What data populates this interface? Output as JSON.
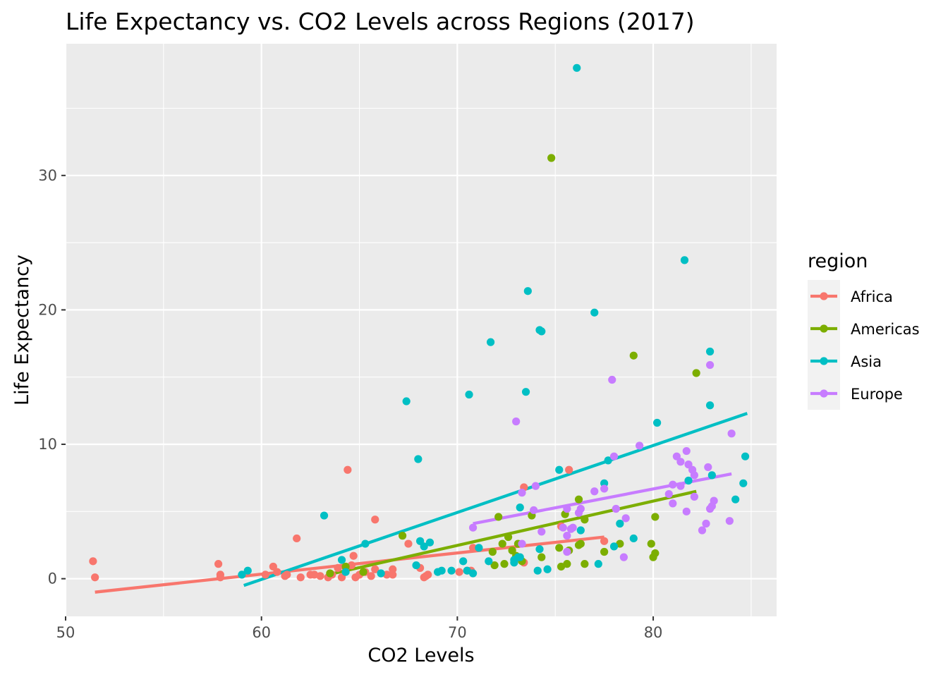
{
  "chart_data": {
    "type": "scatter",
    "title": "Life Expectancy vs. CO2 Levels across Regions (2017)",
    "xlabel": "CO2 Levels",
    "ylabel": "Life Expectancy",
    "xlim": [
      50,
      86.3
    ],
    "ylim": [
      -2.8,
      39.8
    ],
    "xticks": [
      50,
      60,
      70,
      80
    ],
    "yticks": [
      0,
      10,
      20,
      30
    ],
    "grid": true,
    "legend": {
      "title": "region",
      "placement": "right"
    },
    "colors": {
      "Africa": "#F8766D",
      "Americas": "#7CAE00",
      "Asia": "#00BFC4",
      "Europe": "#C77CFF",
      "panel": "#EBEBEB",
      "grid": "#FFFFFF",
      "legend_key_bg": "#F2F2F2"
    },
    "series": [
      {
        "name": "Africa",
        "trend": [
          [
            51.5,
            -1.0
          ],
          [
            77.5,
            3.1
          ]
        ],
        "points": [
          [
            51.4,
            1.3
          ],
          [
            51.5,
            0.1
          ],
          [
            57.8,
            1.1
          ],
          [
            57.9,
            0.3
          ],
          [
            57.9,
            0.1
          ],
          [
            60.2,
            0.3
          ],
          [
            60.6,
            0.9
          ],
          [
            60.8,
            0.5
          ],
          [
            61.2,
            0.2
          ],
          [
            61.3,
            0.3
          ],
          [
            61.8,
            3.0
          ],
          [
            62.0,
            0.1
          ],
          [
            62.5,
            0.3
          ],
          [
            62.7,
            0.3
          ],
          [
            63.0,
            0.2
          ],
          [
            63.4,
            0.1
          ],
          [
            63.6,
            0.3
          ],
          [
            63.9,
            0.8
          ],
          [
            64.1,
            0.1
          ],
          [
            64.3,
            0.8
          ],
          [
            64.4,
            8.1
          ],
          [
            64.6,
            1.0
          ],
          [
            64.7,
            1.7
          ],
          [
            64.8,
            0.1
          ],
          [
            65.0,
            0.3
          ],
          [
            65.3,
            0.5
          ],
          [
            65.8,
            4.4
          ],
          [
            65.6,
            0.2
          ],
          [
            65.8,
            0.7
          ],
          [
            66.4,
            0.3
          ],
          [
            66.7,
            0.7
          ],
          [
            66.7,
            0.3
          ],
          [
            67.5,
            2.6
          ],
          [
            68.1,
            0.8
          ],
          [
            68.3,
            0.1
          ],
          [
            68.5,
            0.3
          ],
          [
            68.4,
            0.2
          ],
          [
            70.1,
            0.5
          ],
          [
            70.5,
            0.6
          ],
          [
            70.7,
            0.6
          ],
          [
            70.8,
            2.3
          ],
          [
            73.4,
            6.8
          ],
          [
            73.4,
            1.2
          ],
          [
            75.3,
            3.9
          ],
          [
            75.7,
            8.1
          ],
          [
            77.5,
            2.8
          ]
        ]
      },
      {
        "name": "Americas",
        "trend": [
          [
            63.4,
            0.3
          ],
          [
            82.2,
            6.5
          ]
        ],
        "points": [
          [
            63.5,
            0.4
          ],
          [
            64.3,
            0.9
          ],
          [
            65.2,
            0.5
          ],
          [
            67.2,
            3.2
          ],
          [
            71.8,
            2.0
          ],
          [
            71.9,
            1.0
          ],
          [
            72.1,
            4.6
          ],
          [
            72.3,
            2.6
          ],
          [
            72.4,
            1.1
          ],
          [
            72.6,
            3.1
          ],
          [
            72.8,
            2.1
          ],
          [
            73.0,
            1.7
          ],
          [
            73.1,
            2.6
          ],
          [
            73.3,
            1.3
          ],
          [
            73.8,
            4.7
          ],
          [
            74.3,
            1.6
          ],
          [
            74.8,
            31.3
          ],
          [
            75.2,
            2.3
          ],
          [
            75.3,
            0.9
          ],
          [
            75.5,
            4.8
          ],
          [
            75.6,
            1.1
          ],
          [
            75.7,
            2.1
          ],
          [
            76.2,
            5.9
          ],
          [
            76.2,
            2.5
          ],
          [
            76.3,
            2.6
          ],
          [
            76.5,
            4.4
          ],
          [
            76.5,
            1.1
          ],
          [
            77.5,
            2.0
          ],
          [
            78.3,
            2.6
          ],
          [
            79.0,
            16.6
          ],
          [
            79.9,
            2.6
          ],
          [
            80.0,
            1.6
          ],
          [
            80.1,
            1.9
          ],
          [
            80.1,
            4.6
          ],
          [
            82.2,
            15.3
          ]
        ]
      },
      {
        "name": "Asia",
        "trend": [
          [
            59.1,
            -0.5
          ],
          [
            84.8,
            12.3
          ]
        ],
        "points": [
          [
            59.0,
            0.3
          ],
          [
            59.3,
            0.6
          ],
          [
            63.2,
            4.7
          ],
          [
            64.1,
            1.4
          ],
          [
            64.3,
            0.5
          ],
          [
            65.3,
            2.6
          ],
          [
            66.1,
            0.4
          ],
          [
            67.4,
            13.2
          ],
          [
            67.9,
            1.0
          ],
          [
            68.0,
            8.9
          ],
          [
            68.1,
            2.8
          ],
          [
            68.3,
            2.4
          ],
          [
            68.6,
            2.7
          ],
          [
            69.0,
            0.5
          ],
          [
            69.2,
            0.6
          ],
          [
            69.7,
            0.6
          ],
          [
            70.3,
            1.3
          ],
          [
            70.5,
            0.6
          ],
          [
            70.6,
            13.7
          ],
          [
            70.8,
            0.4
          ],
          [
            71.1,
            2.3
          ],
          [
            71.6,
            1.3
          ],
          [
            71.7,
            17.6
          ],
          [
            72.9,
            1.2
          ],
          [
            72.9,
            1.4
          ],
          [
            73.1,
            1.6
          ],
          [
            73.2,
            5.3
          ],
          [
            73.2,
            1.6
          ],
          [
            73.5,
            13.9
          ],
          [
            73.6,
            21.4
          ],
          [
            74.1,
            0.6
          ],
          [
            74.2,
            2.2
          ],
          [
            74.2,
            18.5
          ],
          [
            74.3,
            18.4
          ],
          [
            74.6,
            0.7
          ],
          [
            75.2,
            8.1
          ],
          [
            76.1,
            38.0
          ],
          [
            76.3,
            3.6
          ],
          [
            77.0,
            19.8
          ],
          [
            77.2,
            1.1
          ],
          [
            77.5,
            7.1
          ],
          [
            77.7,
            8.8
          ],
          [
            78.0,
            2.4
          ],
          [
            78.3,
            4.1
          ],
          [
            79.0,
            3.0
          ],
          [
            80.2,
            11.6
          ],
          [
            81.6,
            23.7
          ],
          [
            81.8,
            7.3
          ],
          [
            82.9,
            16.9
          ],
          [
            82.9,
            12.9
          ],
          [
            83.0,
            7.7
          ],
          [
            84.2,
            5.9
          ],
          [
            84.6,
            7.1
          ],
          [
            84.7,
            9.1
          ]
        ]
      },
      {
        "name": "Europe",
        "trend": [
          [
            70.8,
            4.1
          ],
          [
            84.0,
            7.8
          ]
        ],
        "points": [
          [
            70.8,
            3.8
          ],
          [
            73.0,
            11.7
          ],
          [
            73.3,
            6.4
          ],
          [
            73.3,
            2.6
          ],
          [
            73.9,
            5.1
          ],
          [
            74.0,
            6.9
          ],
          [
            74.3,
            3.5
          ],
          [
            75.4,
            3.8
          ],
          [
            75.6,
            5.2
          ],
          [
            75.6,
            3.2
          ],
          [
            75.6,
            2.0
          ],
          [
            75.8,
            3.7
          ],
          [
            75.9,
            3.8
          ],
          [
            76.2,
            4.9
          ],
          [
            76.3,
            5.2
          ],
          [
            77.0,
            6.5
          ],
          [
            77.5,
            6.7
          ],
          [
            77.9,
            14.8
          ],
          [
            78.0,
            9.1
          ],
          [
            78.1,
            5.2
          ],
          [
            78.5,
            1.6
          ],
          [
            78.6,
            4.5
          ],
          [
            79.3,
            9.9
          ],
          [
            80.8,
            6.3
          ],
          [
            81.0,
            7.0
          ],
          [
            81.0,
            5.6
          ],
          [
            81.2,
            9.1
          ],
          [
            81.4,
            8.7
          ],
          [
            81.4,
            6.9
          ],
          [
            81.7,
            9.5
          ],
          [
            81.7,
            5.0
          ],
          [
            81.8,
            8.5
          ],
          [
            82.0,
            8.1
          ],
          [
            82.1,
            7.7
          ],
          [
            82.1,
            6.1
          ],
          [
            82.5,
            3.6
          ],
          [
            82.7,
            4.1
          ],
          [
            82.8,
            8.3
          ],
          [
            82.9,
            15.9
          ],
          [
            82.9,
            5.2
          ],
          [
            83.1,
            5.8
          ],
          [
            83.0,
            5.4
          ],
          [
            83.9,
            4.3
          ],
          [
            84.0,
            10.8
          ]
        ]
      }
    ]
  }
}
